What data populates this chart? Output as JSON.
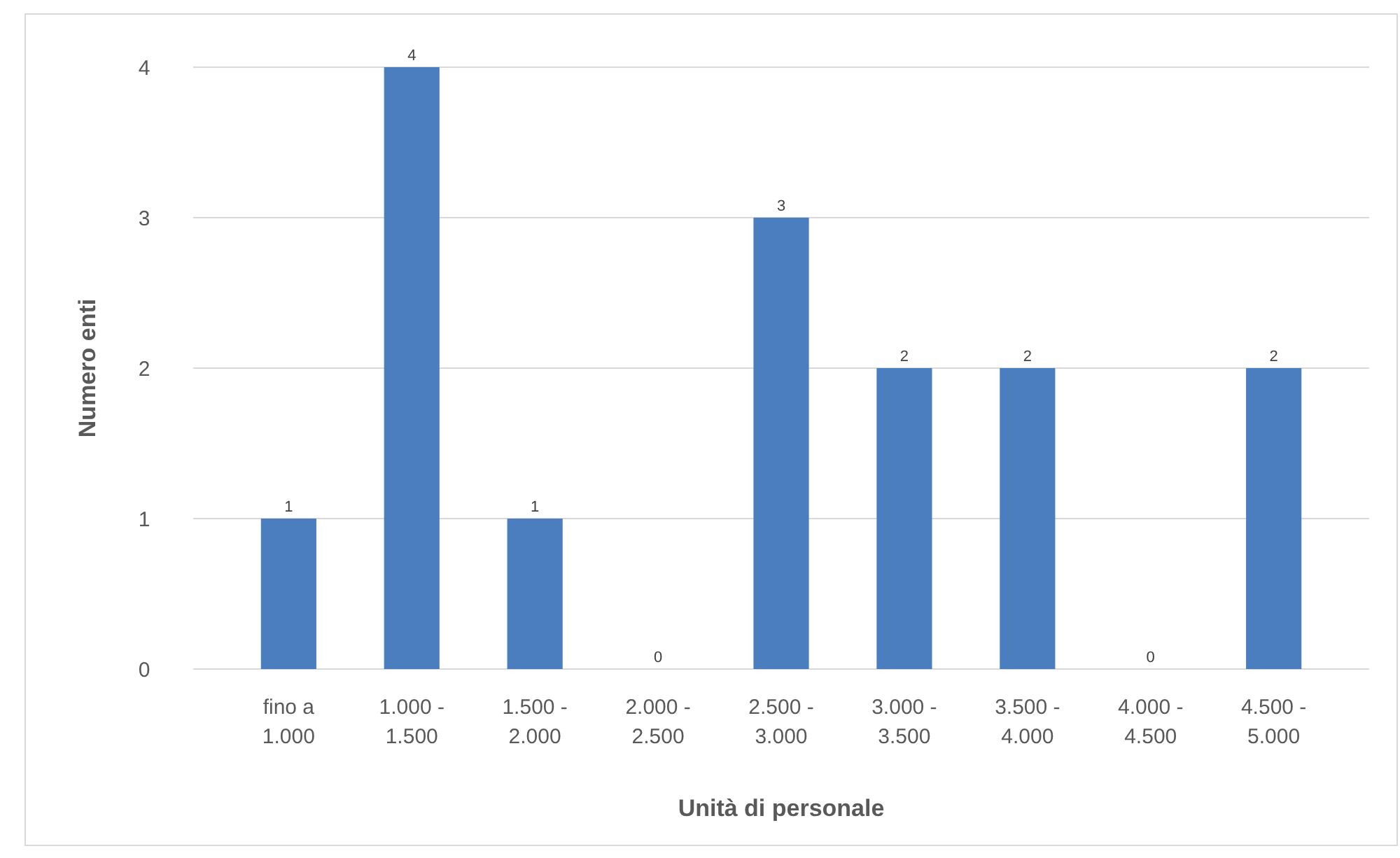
{
  "chart_data": {
    "type": "bar",
    "xlabel": "Unità di personale",
    "ylabel": "Numero enti",
    "categories": [
      "fino a 1.000",
      "1.000 - 1.500",
      "1.500 - 2.000",
      "2.000 - 2.500",
      "2.500 - 3.000",
      "3.000 - 3.500",
      "3.500 - 4.000",
      "4.000 - 4.500",
      "4.500 - 5.000"
    ],
    "values": [
      1,
      4,
      1,
      0,
      3,
      2,
      2,
      0,
      2
    ],
    "color": "#4a7ebf",
    "ylim": [
      0,
      4
    ],
    "yticks": [
      0,
      1,
      2,
      3,
      4
    ],
    "grid": "y",
    "data_labels": true
  }
}
